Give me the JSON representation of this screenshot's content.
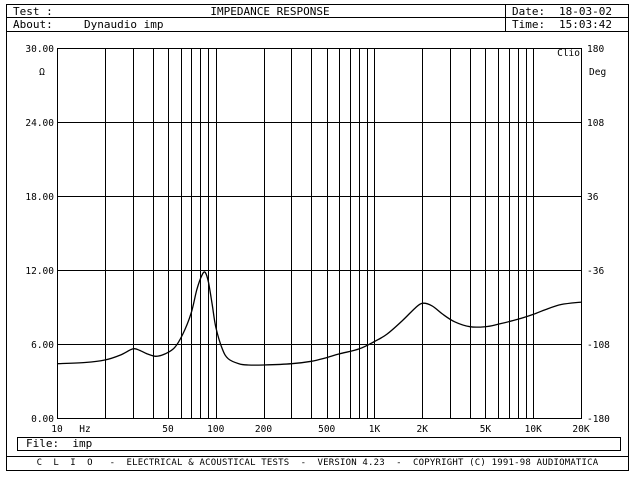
{
  "header": {
    "test_label": "Test :",
    "test_value": "IMPEDANCE RESPONSE",
    "about_label": "About:",
    "about_value": "Dynaudio imp",
    "date_label": "Date:",
    "date_value": "18-03-02",
    "time_label": "Time:",
    "time_value": "15:03:42"
  },
  "file": {
    "label": "File:",
    "value": "imp"
  },
  "footer": "C  L  I  O   -  ELECTRICAL & ACOUSTICAL TESTS  -  VERSION 4.23  -  COPYRIGHT (C) 1991-98 AUDIOMATICA",
  "chart_data": {
    "type": "line",
    "xscale": "log",
    "xlim": [
      10,
      20000
    ],
    "ylim": [
      0,
      30
    ],
    "y2lim": [
      -180,
      180
    ],
    "left_unit": "Ω",
    "right_unit": "Deg",
    "corner_label": "Clio",
    "xunit_label": "Hz",
    "grid": true,
    "x_ticks": [
      {
        "v": 10,
        "label": "10"
      },
      {
        "v": 50,
        "label": "50"
      },
      {
        "v": 100,
        "label": "100"
      },
      {
        "v": 200,
        "label": "200"
      },
      {
        "v": 500,
        "label": "500"
      },
      {
        "v": 1000,
        "label": "1K"
      },
      {
        "v": 2000,
        "label": "2K"
      },
      {
        "v": 5000,
        "label": "5K"
      },
      {
        "v": 10000,
        "label": "10K"
      },
      {
        "v": 20000,
        "label": "20K"
      }
    ],
    "y_ticks": [
      {
        "v": 0,
        "label": "0.00"
      },
      {
        "v": 6,
        "label": "6.00"
      },
      {
        "v": 12,
        "label": "12.00"
      },
      {
        "v": 18,
        "label": "18.00"
      },
      {
        "v": 24,
        "label": "24.00"
      },
      {
        "v": 30,
        "label": "30.00"
      }
    ],
    "y2_ticks": [
      {
        "v": -180,
        "label": "-180"
      },
      {
        "v": -108,
        "label": "-108"
      },
      {
        "v": -36,
        "label": "-36"
      },
      {
        "v": 36,
        "label": "36"
      },
      {
        "v": 108,
        "label": "108"
      },
      {
        "v": 180,
        "label": "180"
      }
    ],
    "series": [
      {
        "color": "#000000",
        "x": [
          10,
          15,
          20,
          25,
          30,
          33,
          37,
          42,
          48,
          55,
          62,
          70,
          76,
          82,
          86,
          90,
          95,
          100,
          110,
          120,
          140,
          160,
          200,
          300,
          400,
          500,
          600,
          800,
          1000,
          1200,
          1500,
          1800,
          2000,
          2300,
          2700,
          3200,
          4000,
          5000,
          6000,
          8000,
          10000,
          12000,
          15000,
          20000
        ],
        "y": [
          4.4,
          4.5,
          4.7,
          5.1,
          5.6,
          5.5,
          5.2,
          5.0,
          5.2,
          5.7,
          6.8,
          8.5,
          10.4,
          11.6,
          11.8,
          11.0,
          9.2,
          7.4,
          5.6,
          4.8,
          4.4,
          4.3,
          4.3,
          4.4,
          4.6,
          4.9,
          5.2,
          5.6,
          6.2,
          6.8,
          7.9,
          8.9,
          9.3,
          9.1,
          8.4,
          7.8,
          7.4,
          7.4,
          7.6,
          8.0,
          8.4,
          8.8,
          9.2,
          9.4
        ]
      }
    ]
  }
}
